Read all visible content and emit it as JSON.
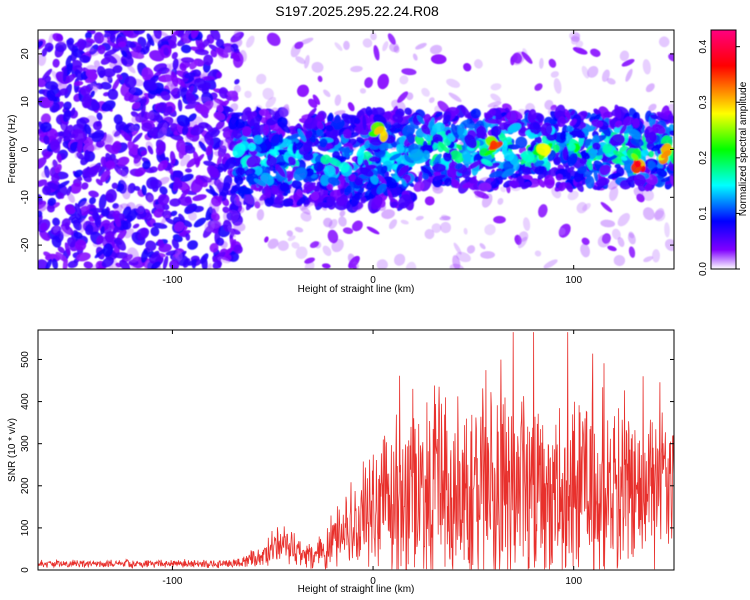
{
  "title": "S197.2025.295.22.24.R08",
  "chart_data": [
    {
      "type": "heatmap",
      "xlabel": "Height of straight line (km)",
      "ylabel": "Frequency (Hz)",
      "xlim": [
        -167,
        150
      ],
      "ylim": [
        -25,
        25
      ],
      "x_ticks": [
        -100,
        0,
        100
      ],
      "y_ticks": [
        -20,
        -10,
        0,
        10,
        20
      ],
      "grid": false,
      "colorbar": {
        "label": "Normalized spectral amplitude",
        "range": [
          0.0,
          0.43
        ],
        "ticks": [
          0.0,
          0.1,
          0.2,
          0.3,
          0.4
        ],
        "colormap": [
          "#ffffff",
          "#8000ff",
          "#0000ff",
          "#00ffff",
          "#00ff00",
          "#ffff00",
          "#ff0000",
          "#ff0080"
        ]
      },
      "regions": [
        {
          "x_range": [
            -167,
            -70
          ],
          "freq_range": [
            -25,
            25
          ],
          "amplitude": 0.05
        },
        {
          "x_range": [
            -70,
            20
          ],
          "freq_range": [
            -12,
            8
          ],
          "amplitude": 0.12
        },
        {
          "x_range": [
            20,
            150
          ],
          "freq_range": [
            -8,
            8
          ],
          "amplitude": 0.15
        }
      ],
      "peaks": [
        {
          "x": 3,
          "freq": 4,
          "amplitude": 0.3
        },
        {
          "x": 60,
          "freq": 1,
          "amplitude": 0.35
        },
        {
          "x": 85,
          "freq": 0,
          "amplitude": 0.28
        },
        {
          "x": 132,
          "freq": -3,
          "amplitude": 0.38
        },
        {
          "x": 146,
          "freq": -1,
          "amplitude": 0.32
        }
      ]
    },
    {
      "type": "line",
      "xlabel": "Height of straight line (km)",
      "ylabel": "SNR (10 * v/v)",
      "xlim": [
        -167,
        150
      ],
      "ylim": [
        0,
        570
      ],
      "x_ticks": [
        -100,
        0,
        100
      ],
      "y_ticks": [
        0,
        100,
        200,
        300,
        400,
        500
      ],
      "grid": false,
      "color": "#e8302c",
      "envelope": [
        {
          "x": -167,
          "base": 15,
          "spread": 10
        },
        {
          "x": -70,
          "base": 15,
          "spread": 10
        },
        {
          "x": -55,
          "base": 30,
          "spread": 30
        },
        {
          "x": -45,
          "base": 70,
          "spread": 70
        },
        {
          "x": -38,
          "base": 40,
          "spread": 40
        },
        {
          "x": -30,
          "base": 30,
          "spread": 30
        },
        {
          "x": -20,
          "base": 80,
          "spread": 80
        },
        {
          "x": -10,
          "base": 120,
          "spread": 120
        },
        {
          "x": 0,
          "base": 150,
          "spread": 140
        },
        {
          "x": 15,
          "base": 180,
          "spread": 220
        },
        {
          "x": 30,
          "base": 200,
          "spread": 280
        },
        {
          "x": 60,
          "base": 200,
          "spread": 300
        },
        {
          "x": 100,
          "base": 190,
          "spread": 250
        },
        {
          "x": 130,
          "base": 180,
          "spread": 200
        },
        {
          "x": 150,
          "base": 190,
          "spread": 190
        }
      ]
    }
  ]
}
